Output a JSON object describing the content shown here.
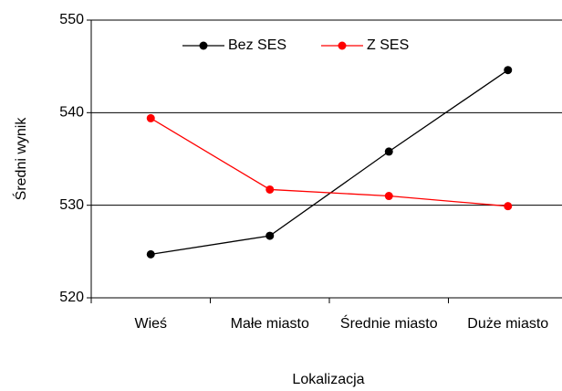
{
  "chart_data": {
    "type": "line",
    "x_label": "Lokalizacja",
    "y_label": "Średni wynik",
    "categories": [
      "Wieś",
      "Małe miasto",
      "Średnie miasto",
      "Duże miasto"
    ],
    "series": [
      {
        "name": "Bez SES",
        "color": "#000000",
        "values": [
          524.7,
          526.7,
          535.8,
          544.6
        ]
      },
      {
        "name": "Z SES",
        "color": "#ff0000",
        "values": [
          539.4,
          531.7,
          531.0,
          529.9
        ]
      }
    ],
    "ylim": [
      520,
      550
    ],
    "yticks": [
      520,
      530,
      540,
      550
    ],
    "grid": true,
    "legend": "top"
  }
}
